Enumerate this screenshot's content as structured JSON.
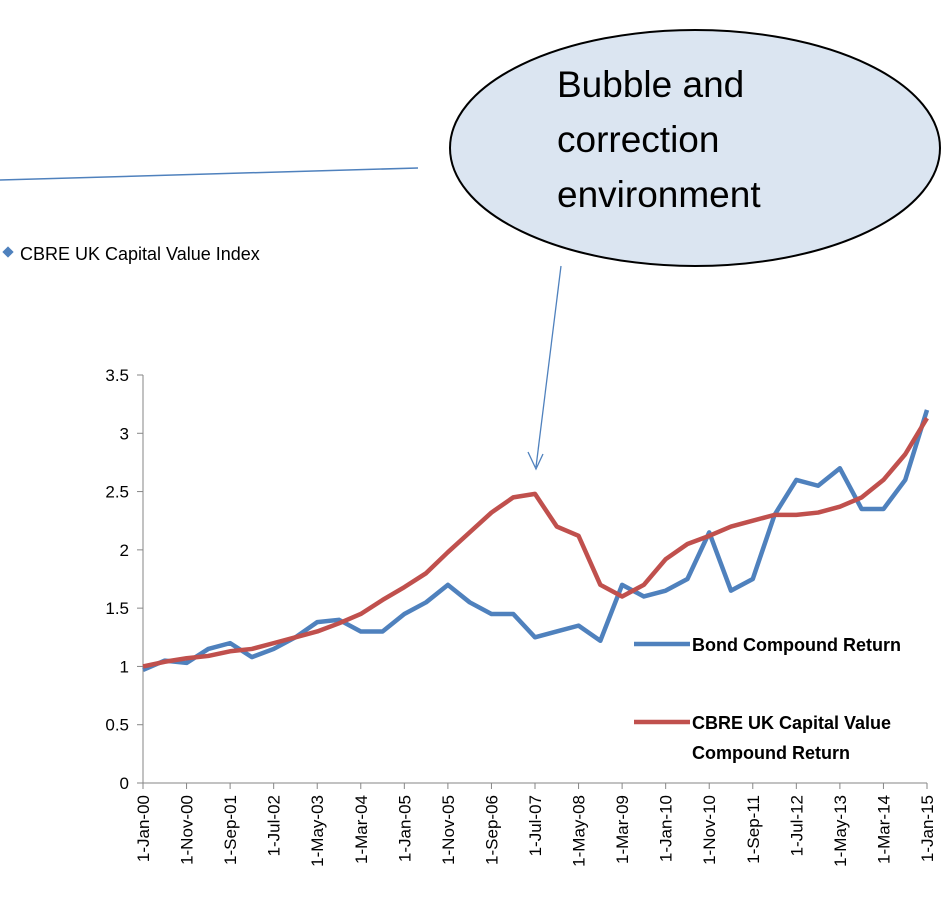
{
  "chart_data": {
    "type": "line",
    "annotation": {
      "lines": [
        "Bubble and",
        "correction",
        "environment"
      ]
    },
    "legend_fragment": "CBRE UK Capital Value Index",
    "x": [
      "1-Jan-00",
      "1-Jun-00",
      "1-Nov-00",
      "1-Apr-01",
      "1-Sep-01",
      "1-Feb-02",
      "1-Jul-02",
      "1-Dec-02",
      "1-May-03",
      "1-Oct-03",
      "1-Mar-04",
      "1-Aug-04",
      "1-Jan-05",
      "1-Jun-05",
      "1-Nov-05",
      "1-Apr-06",
      "1-Sep-06",
      "1-Feb-07",
      "1-Jul-07",
      "1-Dec-07",
      "1-May-08",
      "1-Oct-08",
      "1-Mar-09",
      "1-Aug-09",
      "1-Jan-10",
      "1-Jun-10",
      "1-Nov-10",
      "1-Apr-11",
      "1-Sep-11",
      "1-Feb-12",
      "1-Jul-12",
      "1-Dec-12",
      "1-May-13",
      "1-Oct-13",
      "1-Mar-14",
      "1-Aug-14",
      "1-Jan-15"
    ],
    "series": [
      {
        "name": "Bond Compound Return",
        "color": "#4f81bd",
        "values": [
          0.97,
          1.05,
          1.03,
          1.15,
          1.2,
          1.08,
          1.15,
          1.25,
          1.38,
          1.4,
          1.3,
          1.3,
          1.45,
          1.55,
          1.7,
          1.55,
          1.45,
          1.45,
          1.25,
          1.3,
          1.35,
          1.22,
          1.7,
          1.6,
          1.65,
          1.75,
          2.15,
          1.65,
          1.75,
          2.3,
          2.6,
          2.55,
          2.7,
          2.35,
          2.35,
          2.6,
          3.2
        ]
      },
      {
        "name": "CBRE UK Capital Value Compound Return",
        "color": "#c0504d",
        "values": [
          1.0,
          1.04,
          1.07,
          1.09,
          1.13,
          1.15,
          1.2,
          1.25,
          1.3,
          1.37,
          1.45,
          1.57,
          1.68,
          1.8,
          1.98,
          2.15,
          2.32,
          2.45,
          2.48,
          2.2,
          2.12,
          1.7,
          1.6,
          1.7,
          1.92,
          2.05,
          2.12,
          2.2,
          2.25,
          2.3,
          2.3,
          2.32,
          2.37,
          2.45,
          2.6,
          2.82,
          3.13
        ]
      }
    ],
    "xlim": [
      "1-Jan-00",
      "1-Jan-15"
    ],
    "xticks": [
      "1-Jan-00",
      "1-Nov-00",
      "1-Sep-01",
      "1-Jul-02",
      "1-May-03",
      "1-Mar-04",
      "1-Jan-05",
      "1-Nov-05",
      "1-Sep-06",
      "1-Jul-07",
      "1-May-08",
      "1-Mar-09",
      "1-Jan-10",
      "1-Nov-10",
      "1-Sep-11",
      "1-Jul-12",
      "1-May-13",
      "1-Mar-14",
      "1-Jan-15"
    ],
    "ylim": [
      0,
      3.5
    ],
    "yticks": [
      0,
      0.5,
      1,
      1.5,
      2,
      2.5,
      3,
      3.5
    ],
    "grid": false
  }
}
